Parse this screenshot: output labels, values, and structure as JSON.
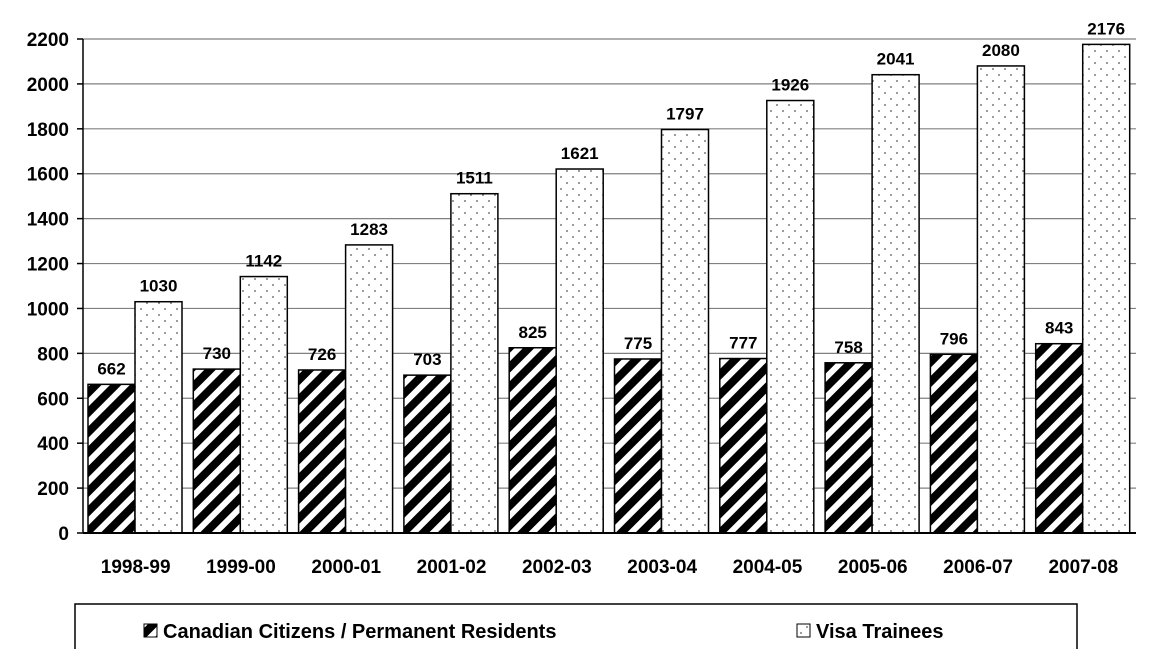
{
  "chart_data": {
    "type": "bar",
    "title": "",
    "xlabel": "",
    "ylabel": "",
    "categories": [
      "1998-99",
      "1999-00",
      "2000-01",
      "2001-02",
      "2002-03",
      "2003-04",
      "2004-05",
      "2005-06",
      "2006-07",
      "2007-08"
    ],
    "series": [
      {
        "name": "Canadian Citizens / Permanent Residents",
        "values": [
          662,
          730,
          726,
          703,
          825,
          775,
          777,
          758,
          796,
          843
        ],
        "pattern": "diagonal-stripes"
      },
      {
        "name": "Visa Trainees",
        "values": [
          1030,
          1142,
          1283,
          1511,
          1621,
          1797,
          1926,
          2041,
          2080,
          2176
        ],
        "pattern": "dots"
      }
    ],
    "ylim": [
      0,
      2200
    ],
    "yticks": [
      0,
      200,
      400,
      600,
      800,
      1000,
      1200,
      1400,
      1600,
      1800,
      2000,
      2200
    ],
    "grid": true,
    "data_labels": true,
    "legend": {
      "position": "bottom",
      "boxed": true
    },
    "colors": {
      "bar_outline": "#000000",
      "stripe_dark": "#000000",
      "stripe_light": "#ffffff",
      "dot_fill": "#555555",
      "gridline": "#808080"
    }
  }
}
